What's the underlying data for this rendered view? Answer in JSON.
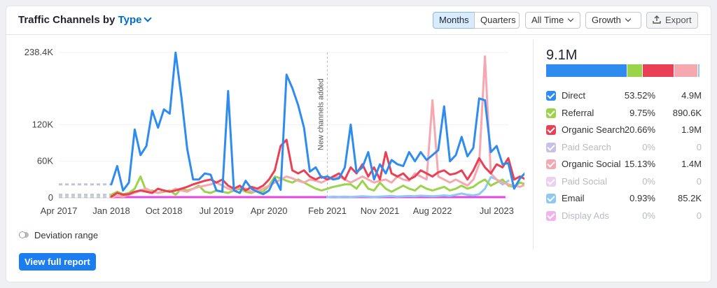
{
  "header": {
    "title_prefix": "Traffic Channels by",
    "title_type": "Type",
    "months_label": "Months",
    "quarters_label": "Quarters",
    "period_label": "All Time",
    "metric_label": "Growth",
    "export_label": "Export"
  },
  "colors": {
    "direct": "#2e8cf0",
    "referral": "#9bd44a",
    "organic_search": "#ea4055",
    "paid_search": "#c9c0ea",
    "organic_social": "#f6a8b1",
    "paid_social": "#ecd0f2",
    "email": "#8ec8f3",
    "display_ads": "#f1b3ec",
    "accent": "#006dca",
    "button": "#1b7df0"
  },
  "summary": {
    "total": "9.1M",
    "bar_shares": [
      53.52,
      9.75,
      20.66,
      0,
      15.13,
      0,
      0.93,
      0
    ]
  },
  "legend": [
    {
      "name": "Direct",
      "percent": "53.52%",
      "value": "4.9M",
      "color": "#2e8cf0",
      "enabled": true
    },
    {
      "name": "Referral",
      "percent": "9.75%",
      "value": "890.6K",
      "color": "#9bd44a",
      "enabled": true
    },
    {
      "name": "Organic Search",
      "percent": "20.66%",
      "value": "1.9M",
      "color": "#ea4055",
      "enabled": true
    },
    {
      "name": "Paid Search",
      "percent": "0%",
      "value": "0",
      "color": "#c9c0ea",
      "enabled": false
    },
    {
      "name": "Organic Social",
      "percent": "15.13%",
      "value": "1.4M",
      "color": "#f6a8b1",
      "enabled": true
    },
    {
      "name": "Paid Social",
      "percent": "0%",
      "value": "0",
      "color": "#ecd0f2",
      "enabled": false
    },
    {
      "name": "Email",
      "percent": "0.93%",
      "value": "85.2K",
      "color": "#8ec8f3",
      "enabled": true
    },
    {
      "name": "Display Ads",
      "percent": "0%",
      "value": "0",
      "color": "#f1b3ec",
      "enabled": false
    }
  ],
  "deviation_label": "Deviation range",
  "view_report_label": "View full report",
  "chart_data": {
    "type": "line",
    "y_ticks": [
      "238.4K",
      "120K",
      "60K",
      "0"
    ],
    "y_tick_values": [
      238400,
      120000,
      60000,
      0
    ],
    "x_ticks": [
      "Apr 2017",
      "Jan 2018",
      "Oct 2018",
      "Jul 2019",
      "Apr 2020",
      "Feb 2021",
      "Nov 2021",
      "Aug 2022",
      "Jul 2023"
    ],
    "x_tick_month_index": [
      0,
      9,
      18,
      27,
      36,
      46,
      55,
      64,
      75
    ],
    "ylim": [
      0,
      238400
    ],
    "x_range_months": [
      0,
      77
    ],
    "annotation": {
      "text": "New channels added",
      "month_index": 46
    },
    "series": [
      {
        "name": "Direct",
        "start_month": 9,
        "values": [
          22000,
          52000,
          12000,
          25000,
          112000,
          70000,
          85000,
          143000,
          115000,
          145000,
          138000,
          238000,
          165000,
          80000,
          30000,
          30000,
          40000,
          38000,
          12000,
          10000,
          175000,
          12000,
          8000,
          28000,
          15000,
          10000,
          6000,
          12000,
          32000,
          13000,
          202000,
          180000,
          152000,
          115000,
          43000,
          50000,
          33000,
          35000,
          30000,
          32000,
          50000,
          120000,
          42000,
          50000,
          75000,
          30000,
          55000,
          40000,
          62000,
          55000,
          52000,
          75000,
          60000,
          75000,
          62000,
          70000,
          78000,
          150000,
          60000,
          70000,
          100000,
          68000,
          82000,
          163000,
          160000,
          75000,
          85000,
          55000,
          57000,
          15000,
          32000,
          42000
        ]
      },
      {
        "name": "Referral",
        "start_month": 9,
        "values": [
          5000,
          10000,
          6000,
          8000,
          15000,
          35000,
          10000,
          12000,
          8000,
          10000,
          12000,
          5000,
          15000,
          12000,
          15000,
          20000,
          10000,
          8000,
          12000,
          10000,
          8000,
          12000,
          15000,
          10000,
          8000,
          12000,
          10000,
          20000,
          35000,
          32000,
          28000,
          25000,
          30000,
          25000,
          20000,
          15000,
          12000,
          15000,
          18000,
          20000,
          22000,
          22000,
          15000,
          28000,
          15000,
          12000,
          25000,
          15000,
          10000,
          15000,
          20000,
          15000,
          12000,
          20000,
          15000,
          12000,
          15000,
          18000,
          12000,
          15000,
          20000,
          15000,
          18000,
          25000,
          30000,
          20000,
          25000,
          30000,
          20000,
          18000,
          25000,
          22000
        ]
      },
      {
        "name": "Organic Search",
        "start_month": 9,
        "values": [
          2000,
          8000,
          5000,
          6000,
          10000,
          12000,
          10000,
          8000,
          15000,
          12000,
          10000,
          12000,
          15000,
          18000,
          22000,
          25000,
          28000,
          30000,
          25000,
          30000,
          20000,
          15000,
          20000,
          12000,
          18000,
          15000,
          20000,
          30000,
          45000,
          85000,
          95000,
          45000,
          40000,
          45000,
          35000,
          30000,
          35000,
          30000,
          35000,
          40000,
          30000,
          50000,
          40000,
          55000,
          35000,
          50000,
          30000,
          75000,
          40000,
          35000,
          40000,
          30000,
          35000,
          45000,
          40000,
          35000,
          42000,
          45000,
          38000,
          40000,
          45000,
          30000,
          45000,
          65000,
          50000,
          40000,
          55000,
          50000,
          65000,
          30000,
          35000,
          30000
        ]
      },
      {
        "name": "Organic Social",
        "start_month": 9,
        "values": [
          1000,
          3000,
          2000,
          5000,
          8000,
          12000,
          15000,
          10000,
          8000,
          12000,
          10000,
          15000,
          12000,
          10000,
          15000,
          18000,
          20000,
          22000,
          25000,
          20000,
          15000,
          12000,
          18000,
          15000,
          10000,
          12000,
          15000,
          20000,
          25000,
          30000,
          35000,
          32000,
          28000,
          25000,
          30000,
          28000,
          25000,
          30000,
          32000,
          35000,
          30000,
          25000,
          30000,
          35000,
          30000,
          25000,
          28000,
          30000,
          25000,
          35000,
          30000,
          28000,
          40000,
          35000,
          30000,
          160000,
          35000,
          30000,
          25000,
          30000,
          25000,
          20000,
          30000,
          55000,
          232000,
          40000,
          30000,
          25000,
          22000,
          20000,
          18000,
          22000
        ]
      },
      {
        "name": "Email",
        "start_month": 46,
        "values": [
          1000,
          2000,
          1500,
          2000,
          1500,
          2000,
          2500,
          2000,
          1500,
          2000,
          2500,
          3000,
          2000,
          2500,
          3000,
          2500,
          3500,
          3000,
          2500,
          3000,
          4000,
          3000,
          5000,
          7000,
          5000,
          4000,
          6000,
          15000,
          34000,
          30000,
          22000,
          28000
        ]
      }
    ]
  }
}
